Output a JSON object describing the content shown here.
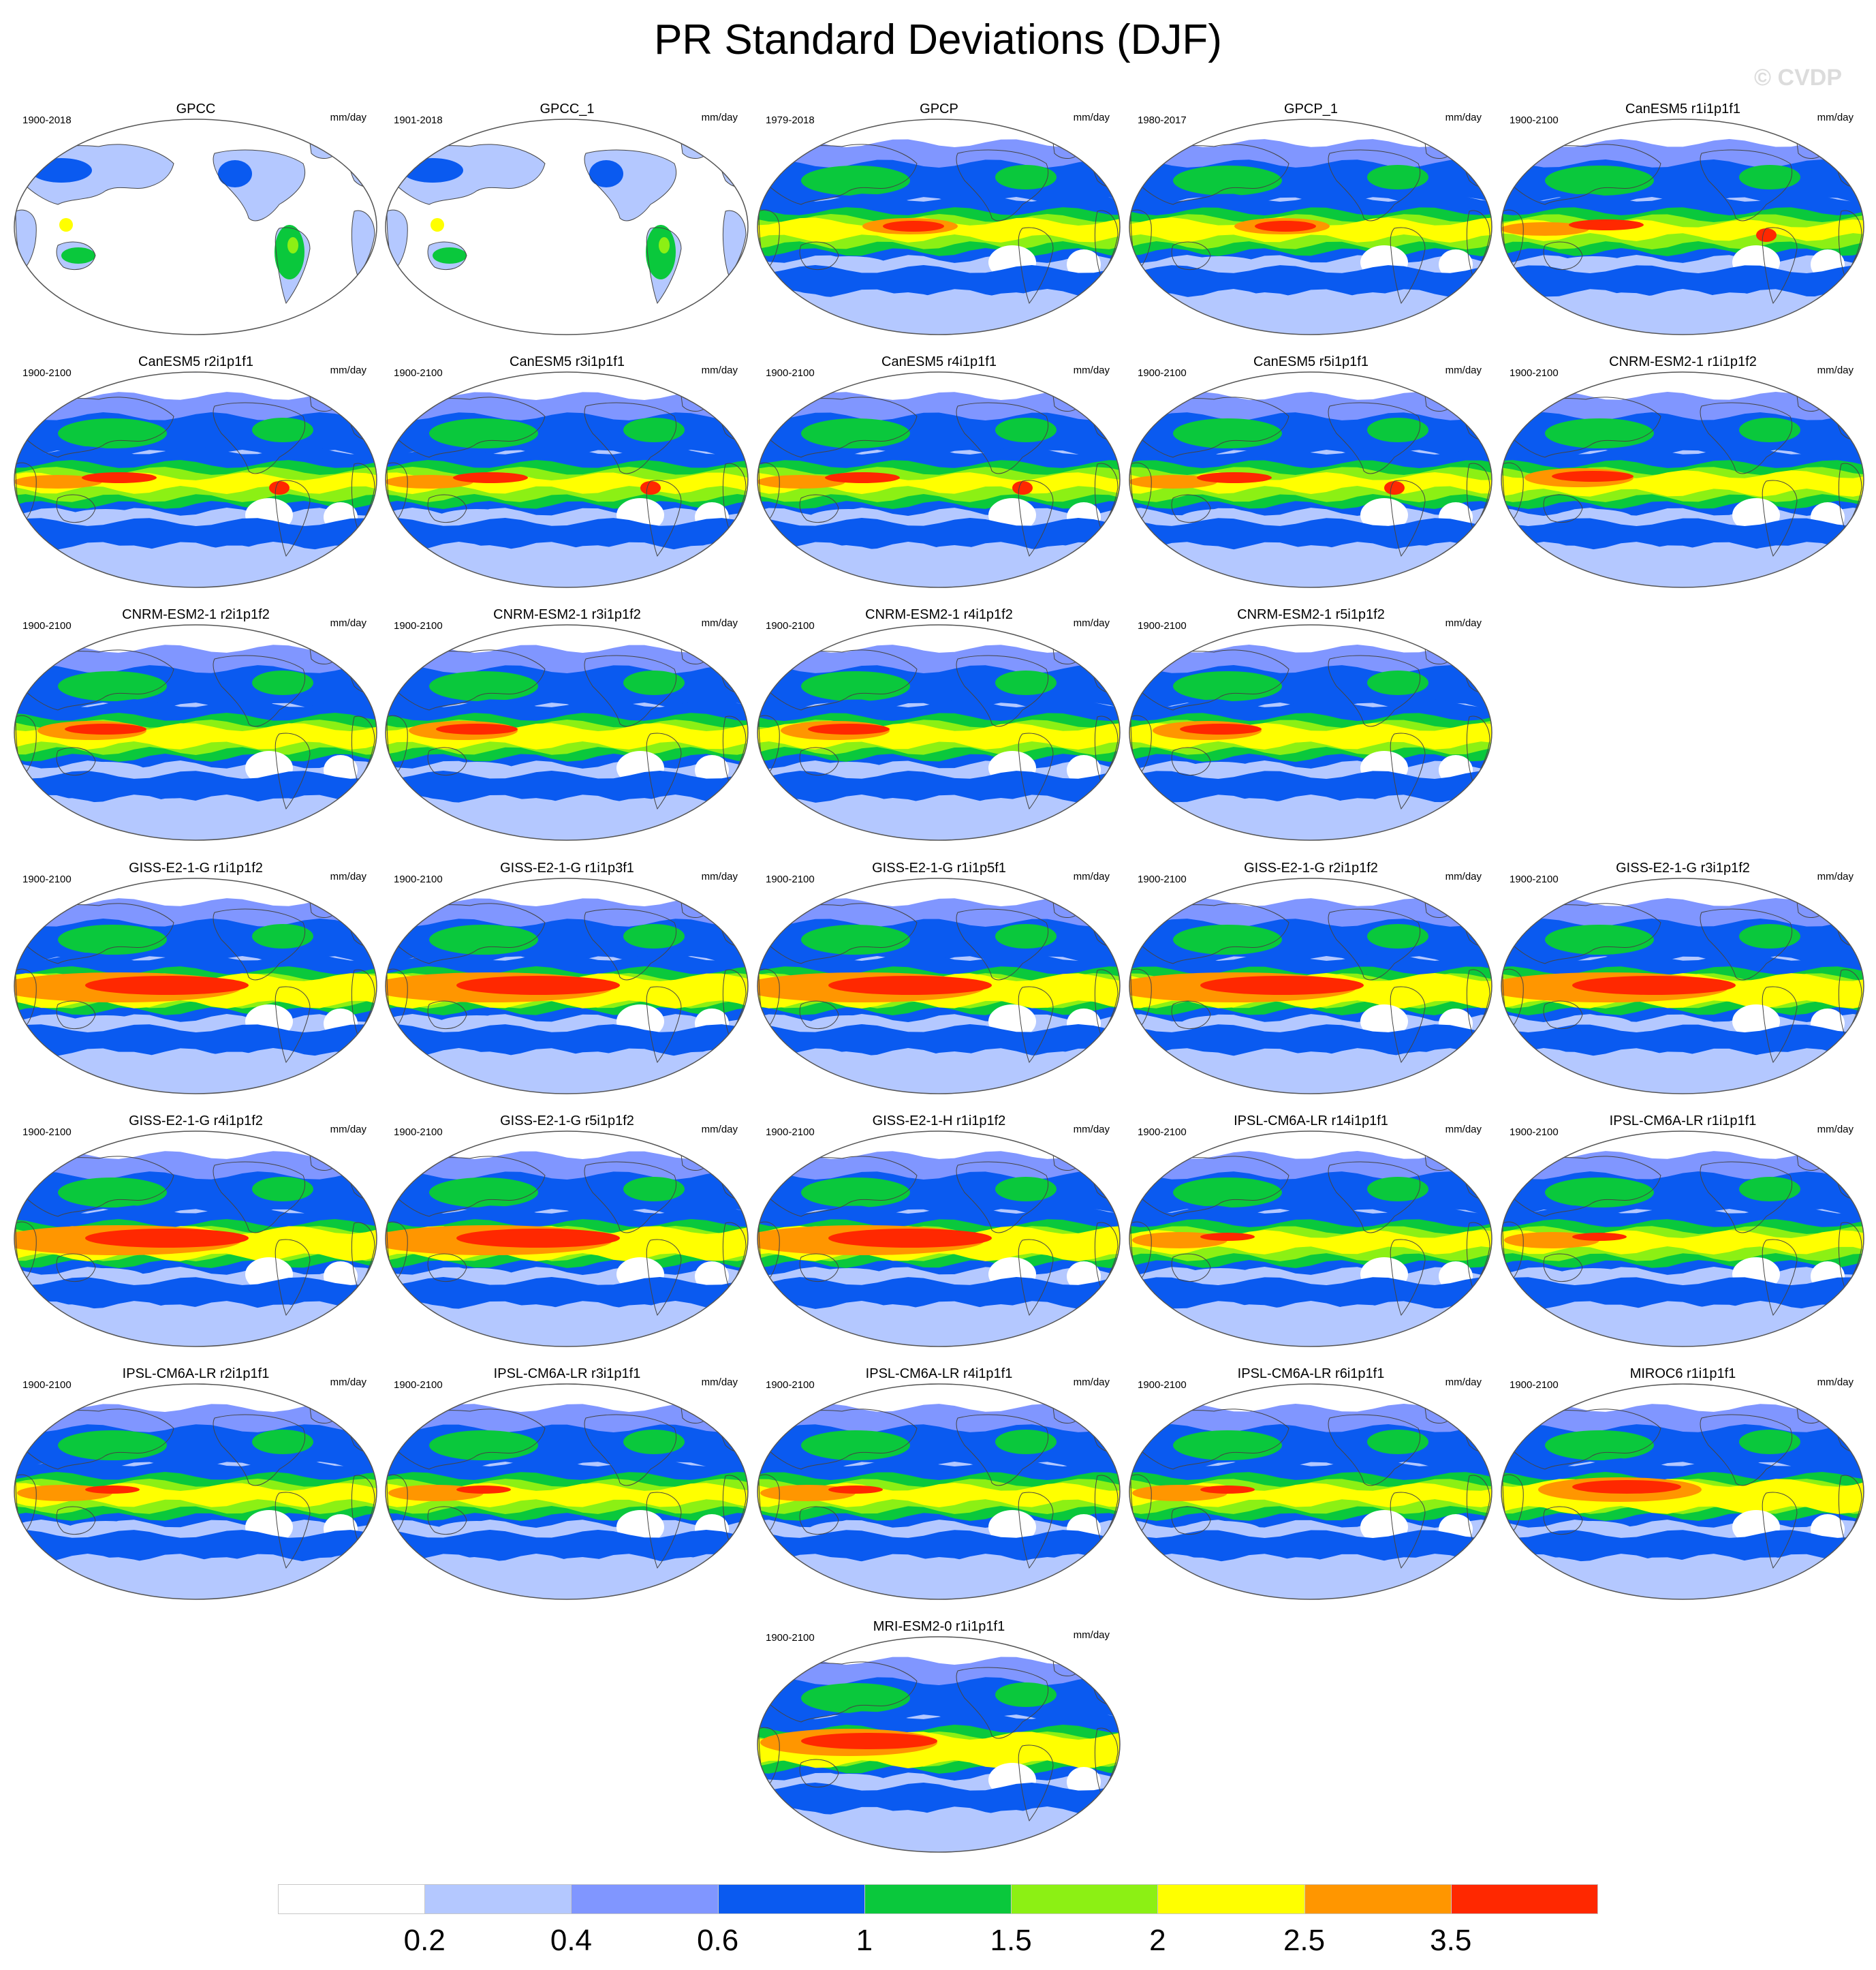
{
  "title": "PR Standard Deviations (DJF)",
  "credit": "© CVDP",
  "unit_label": "mm/day",
  "colorbar": {
    "labels": [
      "0.2",
      "0.4",
      "0.6",
      "1",
      "1.5",
      "2",
      "2.5",
      "3.5"
    ],
    "colors": [
      "#ffffff",
      "#b4c8ff",
      "#8096ff",
      "#0a5af0",
      "#0ac83c",
      "#8cf014",
      "#ffff00",
      "#ff9600",
      "#ff2800"
    ]
  },
  "panels": [
    {
      "name": "GPCC",
      "years": "1900-2018",
      "land_only": true
    },
    {
      "name": "GPCC_1",
      "years": "1901-2018",
      "land_only": true
    },
    {
      "name": "GPCP",
      "years": "1979-2018",
      "style": "gpcp"
    },
    {
      "name": "GPCP_1",
      "years": "1980-2017",
      "style": "gpcp"
    },
    {
      "name": "CanESM5 r1i1p1f1",
      "years": "1900-2100",
      "style": "canesm"
    },
    {
      "name": "CanESM5 r2i1p1f1",
      "years": "1900-2100",
      "style": "canesm"
    },
    {
      "name": "CanESM5 r3i1p1f1",
      "years": "1900-2100",
      "style": "canesm"
    },
    {
      "name": "CanESM5 r4i1p1f1",
      "years": "1900-2100",
      "style": "canesm"
    },
    {
      "name": "CanESM5 r5i1p1f1",
      "years": "1900-2100",
      "style": "canesm"
    },
    {
      "name": "CNRM-ESM2-1 r1i1p1f2",
      "years": "1900-2100",
      "style": "cnrm"
    },
    {
      "name": "CNRM-ESM2-1 r2i1p1f2",
      "years": "1900-2100",
      "style": "cnrm"
    },
    {
      "name": "CNRM-ESM2-1 r3i1p1f2",
      "years": "1900-2100",
      "style": "cnrm"
    },
    {
      "name": "CNRM-ESM2-1 r4i1p1f2",
      "years": "1900-2100",
      "style": "cnrm"
    },
    {
      "name": "CNRM-ESM2-1 r5i1p1f2",
      "years": "1900-2100",
      "style": "cnrm"
    },
    {
      "name": "GISS-E2-1-G r1i1p1f2",
      "years": "1900-2100",
      "style": "giss"
    },
    {
      "name": "GISS-E2-1-G r1i1p3f1",
      "years": "1900-2100",
      "style": "giss"
    },
    {
      "name": "GISS-E2-1-G r1i1p5f1",
      "years": "1900-2100",
      "style": "giss"
    },
    {
      "name": "GISS-E2-1-G r2i1p1f2",
      "years": "1900-2100",
      "style": "giss"
    },
    {
      "name": "GISS-E2-1-G r3i1p1f2",
      "years": "1900-2100",
      "style": "giss"
    },
    {
      "name": "GISS-E2-1-G r4i1p1f2",
      "years": "1900-2100",
      "style": "giss"
    },
    {
      "name": "GISS-E2-1-G r5i1p1f2",
      "years": "1900-2100",
      "style": "giss"
    },
    {
      "name": "GISS-E2-1-H r1i1p1f2",
      "years": "1900-2100",
      "style": "giss"
    },
    {
      "name": "IPSL-CM6A-LR r14i1p1f1",
      "years": "1900-2100",
      "style": "ipsl"
    },
    {
      "name": "IPSL-CM6A-LR r1i1p1f1",
      "years": "1900-2100",
      "style": "ipsl"
    },
    {
      "name": "IPSL-CM6A-LR r2i1p1f1",
      "years": "1900-2100",
      "style": "ipsl"
    },
    {
      "name": "IPSL-CM6A-LR r3i1p1f1",
      "years": "1900-2100",
      "style": "ipsl"
    },
    {
      "name": "IPSL-CM6A-LR r4i1p1f1",
      "years": "1900-2100",
      "style": "ipsl"
    },
    {
      "name": "IPSL-CM6A-LR r6i1p1f1",
      "years": "1900-2100",
      "style": "ipsl"
    },
    {
      "name": "MIROC6 r1i1p1f1",
      "years": "1900-2100",
      "style": "miroc"
    },
    {
      "name": "MRI-ESM2-0 r1i1p1f1",
      "years": "1900-2100",
      "style": "mri"
    }
  ]
}
